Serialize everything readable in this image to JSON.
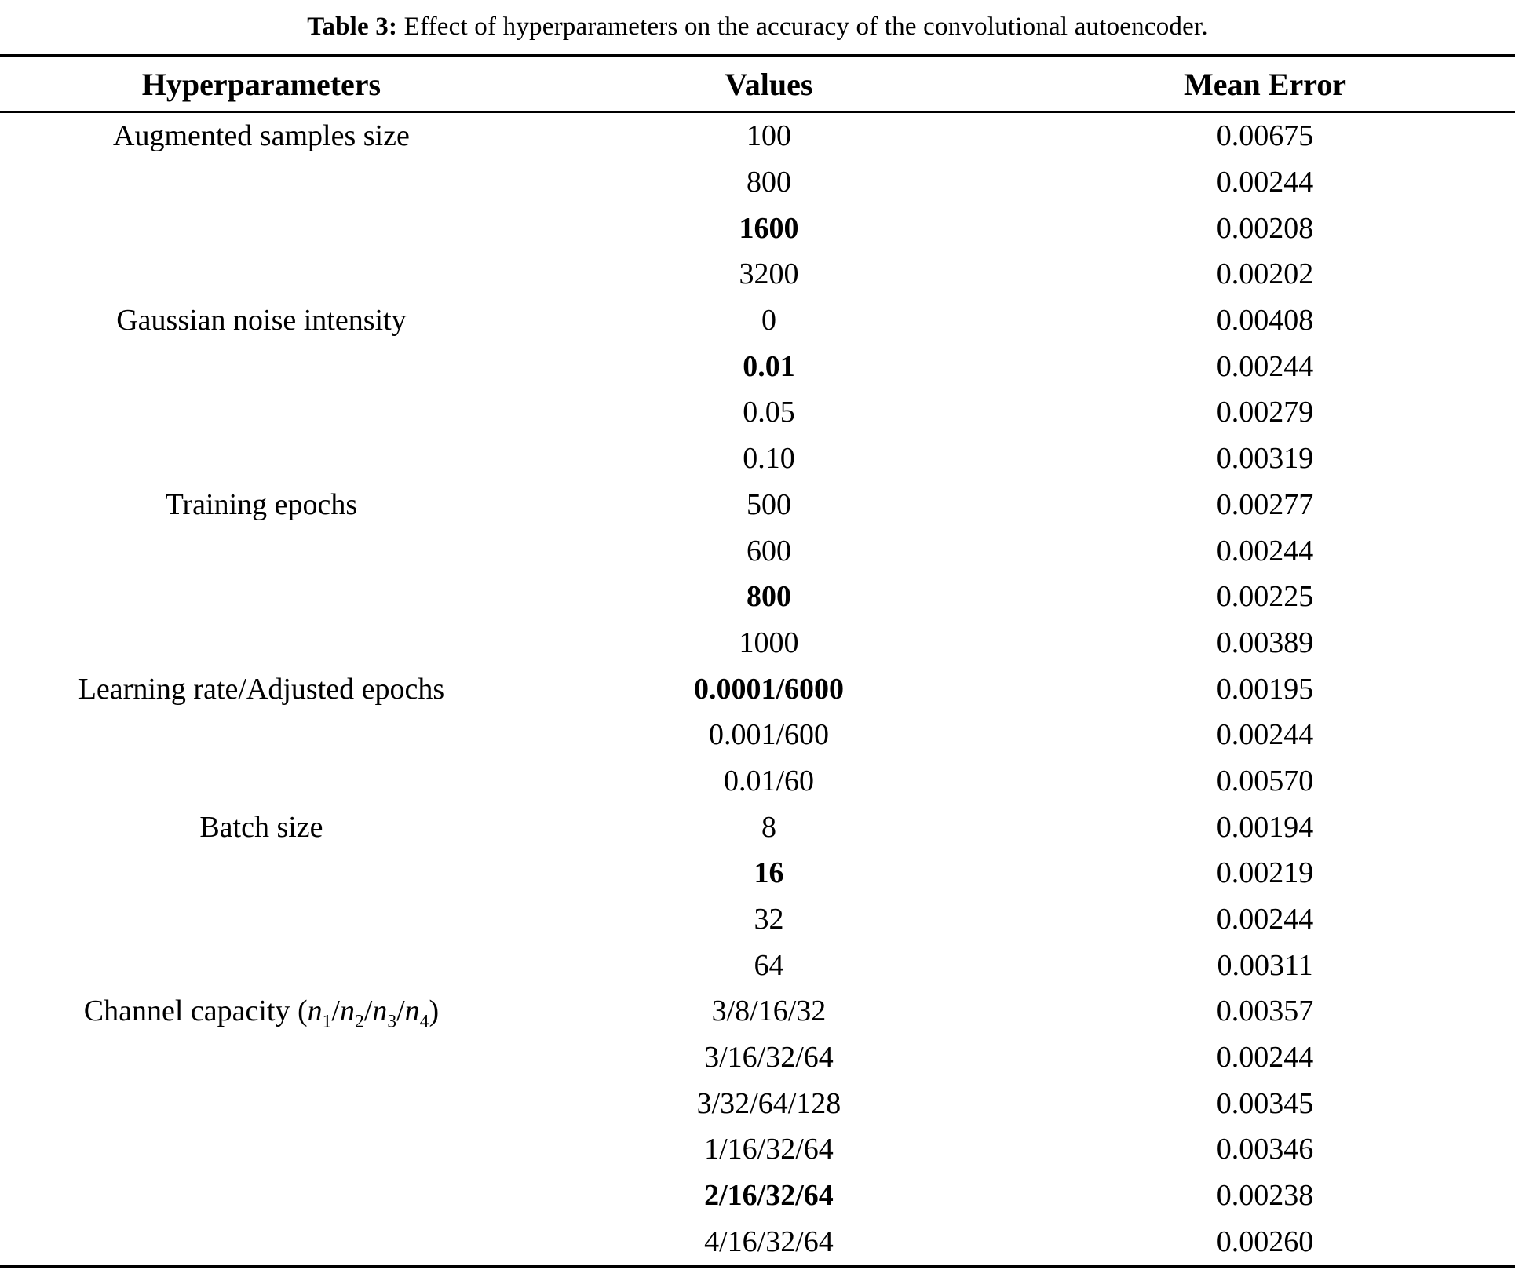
{
  "caption": {
    "label": "Table 3:",
    "text": " Effect of hyperparameters on the accuracy of the convolutional autoencoder."
  },
  "table": {
    "columns": [
      "Hyperparameters",
      "Values",
      "Mean Error"
    ],
    "groups": [
      {
        "parameter": "Augmented samples size",
        "entries": [
          {
            "value": "100",
            "bold": false,
            "mean_error": "0.00675"
          },
          {
            "value": "800",
            "bold": false,
            "mean_error": "0.00244"
          },
          {
            "value": "1600",
            "bold": true,
            "mean_error": "0.00208"
          },
          {
            "value": "3200",
            "bold": false,
            "mean_error": "0.00202"
          }
        ]
      },
      {
        "parameter": "Gaussian noise intensity",
        "entries": [
          {
            "value": "0",
            "bold": false,
            "mean_error": "0.00408"
          },
          {
            "value": "0.01",
            "bold": true,
            "mean_error": "0.00244"
          },
          {
            "value": "0.05",
            "bold": false,
            "mean_error": "0.00279"
          },
          {
            "value": "0.10",
            "bold": false,
            "mean_error": "0.00319"
          }
        ]
      },
      {
        "parameter": "Training epochs",
        "entries": [
          {
            "value": "500",
            "bold": false,
            "mean_error": "0.00277"
          },
          {
            "value": "600",
            "bold": false,
            "mean_error": "0.00244"
          },
          {
            "value": "800",
            "bold": true,
            "mean_error": "0.00225"
          },
          {
            "value": "1000",
            "bold": false,
            "mean_error": "0.00389"
          }
        ]
      },
      {
        "parameter": "Learning rate/Adjusted epochs",
        "entries": [
          {
            "value": "0.0001/6000",
            "bold": true,
            "mean_error": "0.00195"
          },
          {
            "value": "0.001/600",
            "bold": false,
            "mean_error": "0.00244"
          },
          {
            "value": "0.01/60",
            "bold": false,
            "mean_error": "0.00570"
          }
        ]
      },
      {
        "parameter": "Batch size",
        "entries": [
          {
            "value": "8",
            "bold": false,
            "mean_error": "0.00194"
          },
          {
            "value": "16",
            "bold": true,
            "mean_error": "0.00219"
          },
          {
            "value": "32",
            "bold": false,
            "mean_error": "0.00244"
          },
          {
            "value": "64",
            "bold": false,
            "mean_error": "0.00311"
          }
        ]
      },
      {
        "parameter": "Channel capacity (n1/n2/n3/n4)",
        "parameter_parts": [
          {
            "t": "Channel capacity (",
            "s": "n"
          },
          {
            "t": "n",
            "s": "i"
          },
          {
            "t": "1",
            "s": "sub"
          },
          {
            "t": "/",
            "s": "n"
          },
          {
            "t": "n",
            "s": "i"
          },
          {
            "t": "2",
            "s": "sub"
          },
          {
            "t": "/",
            "s": "n"
          },
          {
            "t": "n",
            "s": "i"
          },
          {
            "t": "3",
            "s": "sub"
          },
          {
            "t": "/",
            "s": "n"
          },
          {
            "t": "n",
            "s": "i"
          },
          {
            "t": "4",
            "s": "sub"
          },
          {
            "t": ")",
            "s": "n"
          }
        ],
        "entries": [
          {
            "value": "3/8/16/32",
            "bold": false,
            "mean_error": "0.00357"
          },
          {
            "value": "3/16/32/64",
            "bold": false,
            "mean_error": "0.00244"
          },
          {
            "value": "3/32/64/128",
            "bold": false,
            "mean_error": "0.00345"
          },
          {
            "value": "1/16/32/64",
            "bold": false,
            "mean_error": "0.00346"
          },
          {
            "value": "2/16/32/64",
            "bold": true,
            "mean_error": "0.00238"
          },
          {
            "value": "4/16/32/64",
            "bold": false,
            "mean_error": "0.00260"
          }
        ]
      }
    ]
  }
}
